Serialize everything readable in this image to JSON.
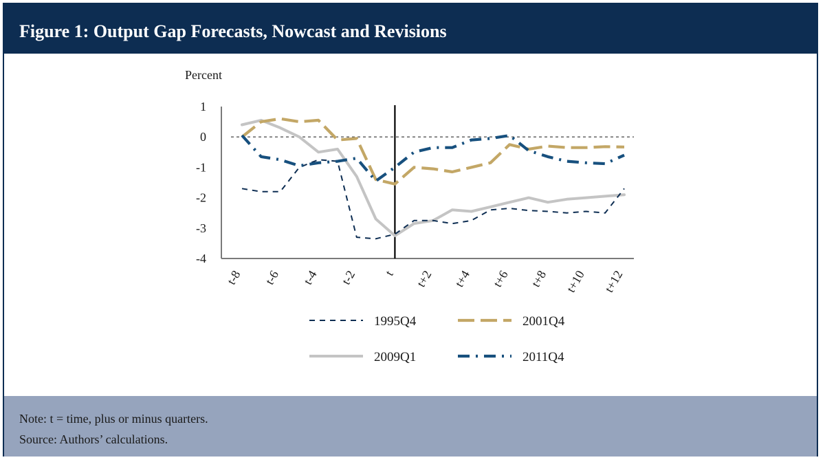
{
  "header": {
    "title": "Figure 1: Output Gap Forecasts, Nowcast and Revisions"
  },
  "footer": {
    "note": "Note: t = time, plus or minus quarters.",
    "source": "Source: Authors’ calculations."
  },
  "colors": {
    "header_bg": "#0d2d52",
    "footer_bg": "#96a4bd",
    "s1995": "#0d2d52",
    "s2001": "#c3a766",
    "s2009": "#c4c4c4",
    "s2011": "#17507e"
  },
  "chart_data": {
    "type": "line",
    "title": "Figure 1: Output Gap Forecasts, Nowcast and Revisions",
    "ylabel": "Percent",
    "xlabel": "",
    "ylim": [
      -4,
      1
    ],
    "yticks": [
      1,
      0,
      -1,
      -2,
      -3,
      -4
    ],
    "x": [
      -8,
      -7,
      -6,
      -5,
      -4,
      -3,
      -2,
      -1,
      0,
      1,
      2,
      3,
      4,
      5,
      6,
      7,
      8,
      9,
      10,
      11,
      12
    ],
    "xtick_labels": [
      "t-8",
      "t-6",
      "t-4",
      "t-2",
      "t",
      "t+2",
      "t+4",
      "t+6",
      "t+8",
      "t+10",
      "t+12"
    ],
    "reference_lines": {
      "zero_line": 0,
      "vertical_at": 0
    },
    "legend_position": "bottom",
    "series": [
      {
        "name": "1995Q4",
        "style": "dashed",
        "color": "#0d2d52",
        "values": [
          -1.7,
          -1.8,
          -1.8,
          -1.0,
          -0.75,
          -0.8,
          -3.3,
          -3.35,
          -3.2,
          -2.75,
          -2.75,
          -2.85,
          -2.75,
          -2.4,
          -2.35,
          -2.42,
          -2.45,
          -2.5,
          -2.45,
          -2.5,
          -1.7
        ]
      },
      {
        "name": "2001Q4",
        "style": "long-dash",
        "color": "#c3a766",
        "values": [
          0.0,
          0.5,
          0.6,
          0.5,
          0.55,
          -0.1,
          -0.05,
          -1.4,
          -1.55,
          -1.0,
          -1.05,
          -1.15,
          -1.0,
          -0.85,
          -0.25,
          -0.4,
          -0.3,
          -0.35,
          -0.35,
          -0.32,
          -0.33
        ]
      },
      {
        "name": "2009Q1",
        "style": "solid",
        "color": "#c4c4c4",
        "values": [
          0.4,
          0.55,
          0.3,
          0.0,
          -0.5,
          -0.4,
          -1.3,
          -2.7,
          -3.25,
          -2.85,
          -2.75,
          -2.4,
          -2.45,
          -2.3,
          -2.15,
          -2.0,
          -2.15,
          -2.05,
          -2.0,
          -1.95,
          -1.9
        ]
      },
      {
        "name": "2011Q4",
        "style": "dash-dot",
        "color": "#17507e",
        "values": [
          0.05,
          -0.65,
          -0.75,
          -0.95,
          -0.85,
          -0.8,
          -0.7,
          -1.45,
          -1.0,
          -0.5,
          -0.35,
          -0.35,
          -0.1,
          -0.05,
          0.05,
          -0.45,
          -0.65,
          -0.8,
          -0.85,
          -0.88,
          -0.6
        ]
      }
    ]
  }
}
